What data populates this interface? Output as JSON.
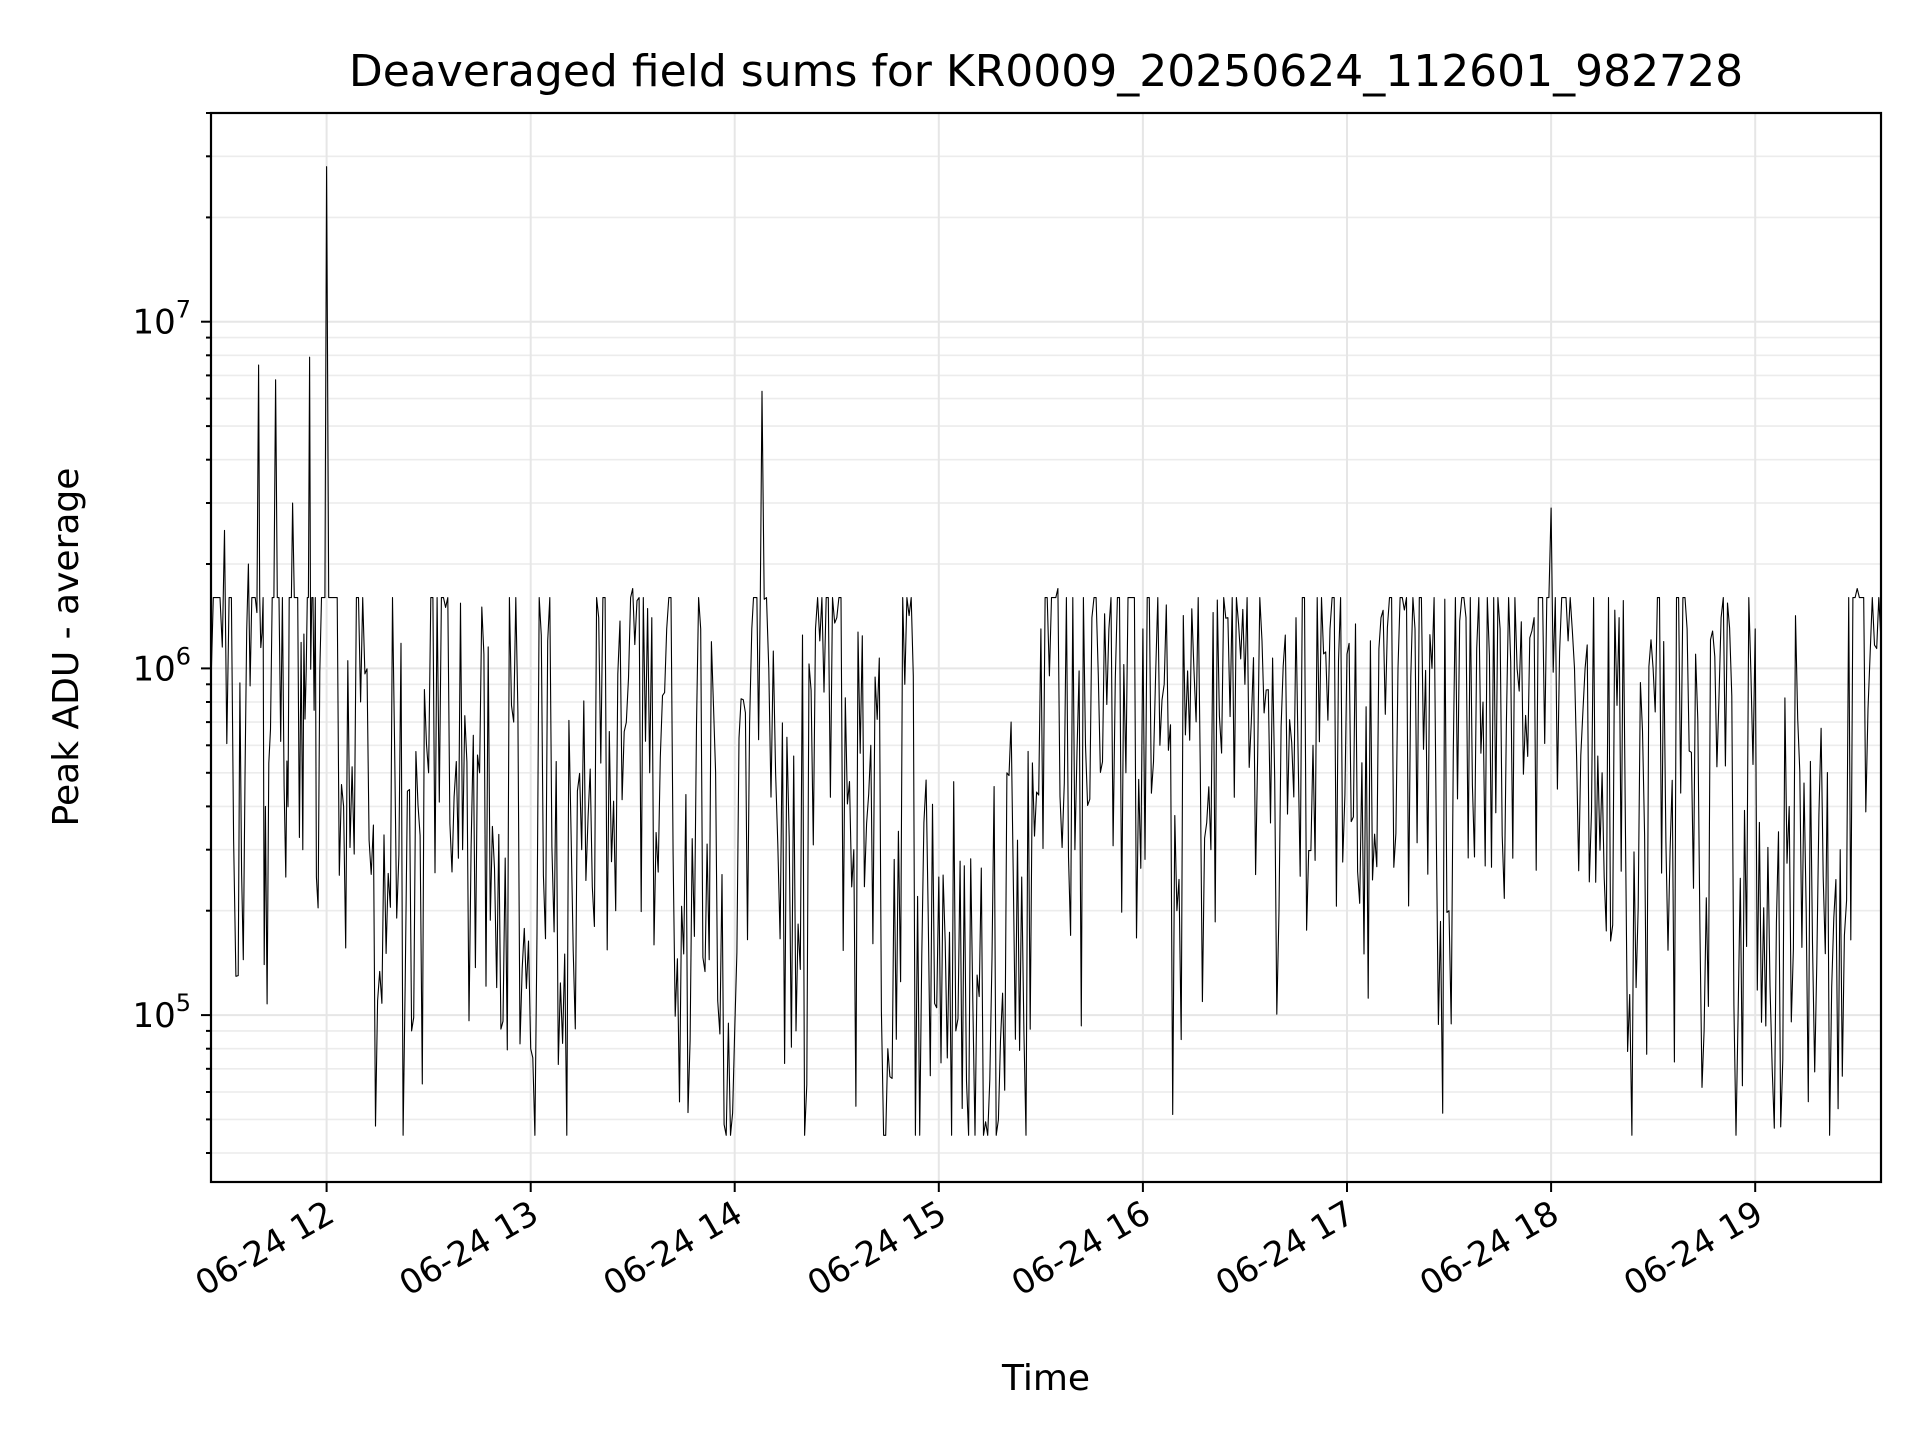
{
  "chart_data": {
    "type": "line",
    "title": "Deaveraged field sums for KR0009_20250624_112601_982728",
    "xlabel": "Time",
    "ylabel": "Peak ADU - average",
    "yscale": "log",
    "ylim": [
      33000,
      40000000
    ],
    "xlim": [
      "2025-06-24T11:26:01",
      "2025-06-24T19:37:00"
    ],
    "grid": true,
    "x_ticks": [
      "06-24 12",
      "06-24 13",
      "06-24 14",
      "06-24 15",
      "06-24 16",
      "06-24 17",
      "06-24 18",
      "06-24 19"
    ],
    "y_ticks": [
      {
        "base": "10",
        "exp": "5",
        "value": 100000
      },
      {
        "base": "10",
        "exp": "6",
        "value": 1000000
      },
      {
        "base": "10",
        "exp": "7",
        "value": 10000000
      }
    ],
    "series": [
      {
        "color": "#000000",
        "x": [
          "2025-06-24T11:26:01",
          "2025-06-24T11:30:00",
          "2025-06-24T11:34:00",
          "2025-06-24T11:37:00",
          "2025-06-24T11:40:00",
          "2025-06-24T11:42:00",
          "2025-06-24T11:45:00",
          "2025-06-24T11:48:00",
          "2025-06-24T11:50:00",
          "2025-06-24T11:53:00",
          "2025-06-24T11:55:00",
          "2025-06-24T11:57:00",
          "2025-06-24T12:00:00",
          "2025-06-24T12:05:00",
          "2025-06-24T12:10:00",
          "2025-06-24T12:15:00",
          "2025-06-24T12:20:00",
          "2025-06-24T12:25:00",
          "2025-06-24T12:30:00",
          "2025-06-24T12:35:00",
          "2025-06-24T12:40:00",
          "2025-06-24T12:45:00",
          "2025-06-24T12:50:00",
          "2025-06-24T12:55:00",
          "2025-06-24T13:00:00",
          "2025-06-24T13:05:00",
          "2025-06-24T13:10:00",
          "2025-06-24T13:15:00",
          "2025-06-24T13:20:00",
          "2025-06-24T13:25:00",
          "2025-06-24T13:30:00",
          "2025-06-24T13:35:00",
          "2025-06-24T13:40:00",
          "2025-06-24T13:45:00",
          "2025-06-24T13:50:00",
          "2025-06-24T13:55:00",
          "2025-06-24T14:00:00",
          "2025-06-24T14:05:00",
          "2025-06-24T14:08:00",
          "2025-06-24T14:12:00",
          "2025-06-24T14:18:00",
          "2025-06-24T14:25:00",
          "2025-06-24T14:30:00",
          "2025-06-24T14:35:00",
          "2025-06-24T14:40:00",
          "2025-06-24T14:45:00",
          "2025-06-24T14:50:00",
          "2025-06-24T14:55:00",
          "2025-06-24T15:00:00",
          "2025-06-24T15:05:00",
          "2025-06-24T15:10:00",
          "2025-06-24T15:15:00",
          "2025-06-24T15:20:00",
          "2025-06-24T15:25:00",
          "2025-06-24T15:30:00",
          "2025-06-24T15:35:00",
          "2025-06-24T15:40:00",
          "2025-06-24T15:45:00",
          "2025-06-24T15:50:00",
          "2025-06-24T15:55:00",
          "2025-06-24T16:00:00",
          "2025-06-24T16:05:00",
          "2025-06-24T16:10:00",
          "2025-06-24T16:15:00",
          "2025-06-24T16:20:00",
          "2025-06-24T16:25:00",
          "2025-06-24T16:30:00",
          "2025-06-24T16:35:00",
          "2025-06-24T16:40:00",
          "2025-06-24T16:45:00",
          "2025-06-24T16:50:00",
          "2025-06-24T16:55:00",
          "2025-06-24T17:00:00",
          "2025-06-24T17:05:00",
          "2025-06-24T17:10:00",
          "2025-06-24T17:15:00",
          "2025-06-24T17:20:00",
          "2025-06-24T17:25:00",
          "2025-06-24T17:30:00",
          "2025-06-24T17:35:00",
          "2025-06-24T17:40:00",
          "2025-06-24T17:45:00",
          "2025-06-24T17:50:00",
          "2025-06-24T17:55:00",
          "2025-06-24T18:00:00",
          "2025-06-24T18:05:00",
          "2025-06-24T18:10:00",
          "2025-06-24T18:15:00",
          "2025-06-24T18:20:00",
          "2025-06-24T18:25:00",
          "2025-06-24T18:30:00",
          "2025-06-24T18:35:00",
          "2025-06-24T18:40:00",
          "2025-06-24T18:45:00",
          "2025-06-24T18:50:00",
          "2025-06-24T18:55:00",
          "2025-06-24T19:00:00",
          "2025-06-24T19:05:00",
          "2025-06-24T19:10:00",
          "2025-06-24T19:15:00",
          "2025-06-24T19:20:00",
          "2025-06-24T19:25:00",
          "2025-06-24T19:30:00",
          "2025-06-24T19:37:00"
        ],
        "y": [
          900000,
          2500000,
          130000,
          2000000,
          7500000,
          400000,
          6800000,
          250000,
          3000000,
          300000,
          7900000,
          250000,
          28000000,
          400000,
          800000,
          110000,
          600000,
          90000,
          500000,
          1500000,
          300000,
          500000,
          120000,
          700000,
          80000,
          1200000,
          150000,
          300000,
          1400000,
          200000,
          1700000,
          500000,
          1300000,
          150000,
          1300000,
          110000,
          90000,
          1300000,
          6300000,
          500000,
          90000,
          1200000,
          1400000,
          300000,
          600000,
          80000,
          900000,
          150000,
          250000,
          90000,
          110000,
          65000,
          500000,
          90000,
          1300000,
          1700000,
          300000,
          1400000,
          1300000,
          500000,
          1300000,
          600000,
          200000,
          1000000,
          300000,
          1400000,
          900000,
          1200000,
          200000,
          1400000,
          600000,
          1300000,
          1100000,
          150000,
          1400000,
          1000000,
          1300000,
          1000000,
          200000,
          1400000,
          800000,
          1300000,
          1000000,
          1400000,
          2900000,
          1200000,
          1000000,
          500000,
          1400000,
          120000,
          1000000,
          300000,
          1300000,
          90000,
          1400000,
          100000,
          1300000,
          70000,
          400000,
          200000,
          250000,
          300000,
          1700000,
          1200000
        ]
      }
    ]
  }
}
